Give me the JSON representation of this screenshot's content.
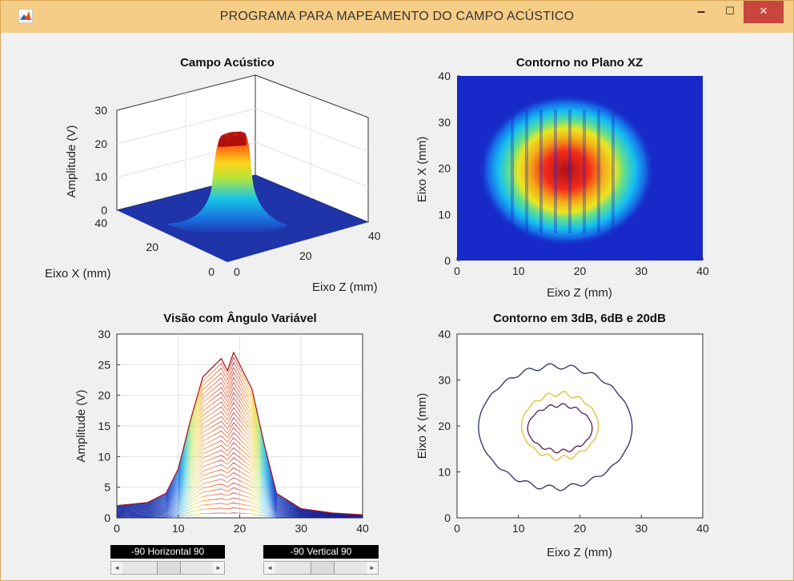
{
  "window": {
    "title": "PROGRAMA PARA MAPEAMENTO DO CAMPO ACÚSTICO",
    "min": "–",
    "max": "☐",
    "close": "✕"
  },
  "plot3d": {
    "title": "Campo Acústico",
    "zlabel": "Amplitude (V)",
    "xlabel": "Eixo X (mm)",
    "ylabel": "Eixo Z (mm)",
    "zticks": [
      "0",
      "10",
      "20",
      "30"
    ],
    "xticks": [
      "40",
      "20",
      "0"
    ],
    "yticks": [
      "0",
      "20",
      "40"
    ]
  },
  "contour_xz": {
    "title": "Contorno no Plano XZ",
    "xlabel": "Eixo Z (mm)",
    "ylabel": "Eixo X (mm)",
    "xticks": [
      "0",
      "10",
      "20",
      "30",
      "40"
    ],
    "yticks": [
      "0",
      "10",
      "20",
      "30",
      "40"
    ]
  },
  "side_view": {
    "title": "Visão com Ângulo Variável",
    "xlabel": "",
    "ylabel": "Amplitude (V)",
    "xticks": [
      "0",
      "10",
      "20",
      "30",
      "40"
    ],
    "yticks": [
      "0",
      "5",
      "10",
      "15",
      "20",
      "25",
      "30"
    ]
  },
  "contour_db": {
    "title": "Contorno em 3dB, 6dB e 20dB",
    "xlabel": "Eixo Z (mm)",
    "ylabel": "Eixo X (mm)",
    "xticks": [
      "0",
      "10",
      "20",
      "30",
      "40"
    ],
    "yticks": [
      "0",
      "10",
      "20",
      "30",
      "40"
    ]
  },
  "sliders": {
    "horizontal_label": "-90 Horizontal 90",
    "vertical_label": "-90   Vertical   90",
    "left_arrow": "◄",
    "right_arrow": "►"
  },
  "colors": {
    "titlebar": "#f6cd86",
    "close": "#c9463d",
    "contour20": "#2b2d6e",
    "contour6": "#e6bd2e",
    "contour3": "#5c1a50"
  },
  "chart_data": [
    {
      "type": "surface",
      "title": "Campo Acústico",
      "zlim": [
        0,
        30
      ],
      "xlim": [
        0,
        40
      ],
      "ylim": [
        0,
        40
      ],
      "peak_amplitude": 27,
      "peak_center": {
        "x": 19,
        "z": 17
      }
    },
    {
      "type": "heatmap",
      "title": "Contorno no Plano XZ",
      "xlim": [
        0,
        40
      ],
      "ylim": [
        0,
        40
      ],
      "hot_region": {
        "z": [
          13,
          23
        ],
        "x": [
          14,
          25
        ]
      }
    },
    {
      "type": "line",
      "title": "Visão com Ângulo Variável",
      "xlim": [
        0,
        40
      ],
      "ylim": [
        0,
        30
      ],
      "envelope": {
        "x": [
          0,
          5,
          8,
          10,
          12,
          14,
          16,
          17,
          18,
          19,
          20,
          22,
          24,
          26,
          30,
          35,
          40
        ],
        "y": [
          2,
          2.5,
          4,
          8,
          16,
          23,
          25,
          26,
          24,
          27,
          25,
          21,
          12,
          4,
          1.5,
          0.8,
          0.5
        ]
      }
    },
    {
      "type": "contour",
      "title": "Contorno em 3dB, 6dB e 20dB",
      "xlim": [
        0,
        40
      ],
      "ylim": [
        0,
        40
      ],
      "series": [
        {
          "level": "20dB",
          "z_range": [
            3.5,
            28.5
          ],
          "x_range": [
            6.5,
            33
          ]
        },
        {
          "level": "6dB",
          "z_range": [
            10.5,
            23
          ],
          "x_range": [
            13,
            27
          ]
        },
        {
          "level": "3dB",
          "z_range": [
            11.5,
            22
          ],
          "x_range": [
            14.5,
            24.5
          ]
        }
      ]
    }
  ]
}
